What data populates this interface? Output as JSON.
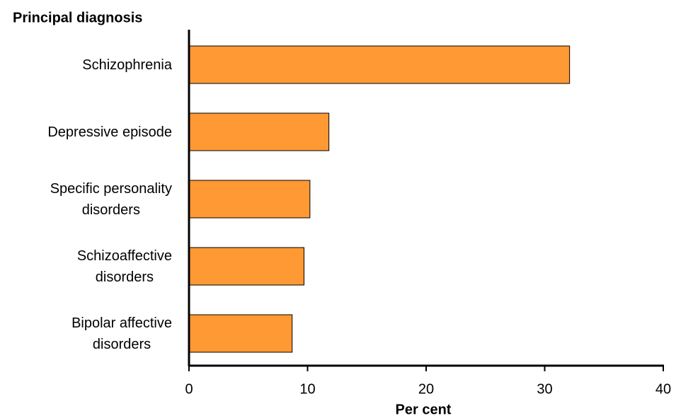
{
  "chart_data": {
    "type": "bar",
    "orientation": "horizontal",
    "y_label": "Principal diagnosis",
    "x_label": "Per cent",
    "categories": [
      "Schizophrenia",
      "Depressive episode",
      "Specific personality\ndisorders",
      "Schizoaffective\ndisorders",
      "Bipolar affective\ndisorders"
    ],
    "values": [
      32.1,
      11.8,
      10.2,
      9.7,
      8.7
    ],
    "color": "#ff9933",
    "xlim": [
      0,
      40
    ],
    "xticks": [
      0,
      10,
      20,
      30,
      40
    ],
    "grid": false
  }
}
